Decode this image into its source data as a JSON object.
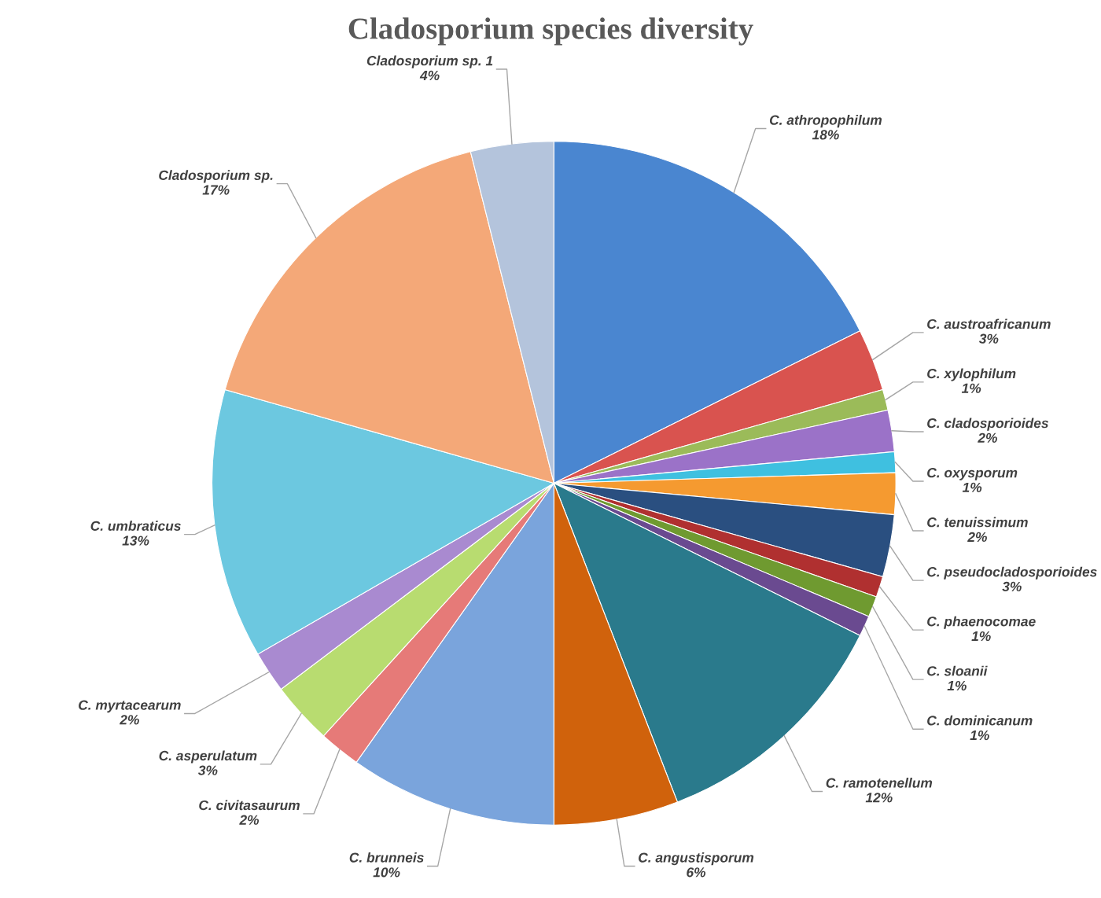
{
  "chart_data": {
    "type": "pie",
    "title": "Cladosporium species diversity",
    "categories": [
      "C. athropophilum",
      "C. austroafricanum",
      "C. xylophilum",
      "C. cladosporioides",
      "C. oxysporum",
      "C. tenuissimum",
      "C. pseudocladosporioides",
      "C. phaenocomae",
      "C. sloanii",
      "C. dominicanum",
      "C. ramotenellum",
      "C. angustisporum",
      "C. brunneis",
      "C. civitasaurum",
      "C. asperulatum",
      "C. myrtacearum",
      "C. umbraticus",
      "Cladosporium sp.",
      "Cladosporium sp. 1"
    ],
    "values": [
      18,
      3,
      1,
      2,
      1,
      2,
      3,
      1,
      1,
      1,
      12,
      6,
      10,
      2,
      3,
      2,
      13,
      17,
      4
    ],
    "value_labels": [
      "18%",
      "3%",
      "1%",
      "2%",
      "1%",
      "2%",
      "3%",
      "1%",
      "1%",
      "1%",
      "12%",
      "6%",
      "10%",
      "2%",
      "3%",
      "2%",
      "13%",
      "17%",
      "4%"
    ],
    "colors": [
      "#4a86d0",
      "#d9534f",
      "#9bbb59",
      "#9b72c8",
      "#3fc0e0",
      "#f59a30",
      "#2a4f80",
      "#b03030",
      "#6f9a30",
      "#6a4a90",
      "#2a7a8c",
      "#d0620c",
      "#7aa4dc",
      "#e67a78",
      "#b8dc70",
      "#a98ad0",
      "#6cc8e0",
      "#f4a878",
      "#b4c4dc"
    ]
  }
}
